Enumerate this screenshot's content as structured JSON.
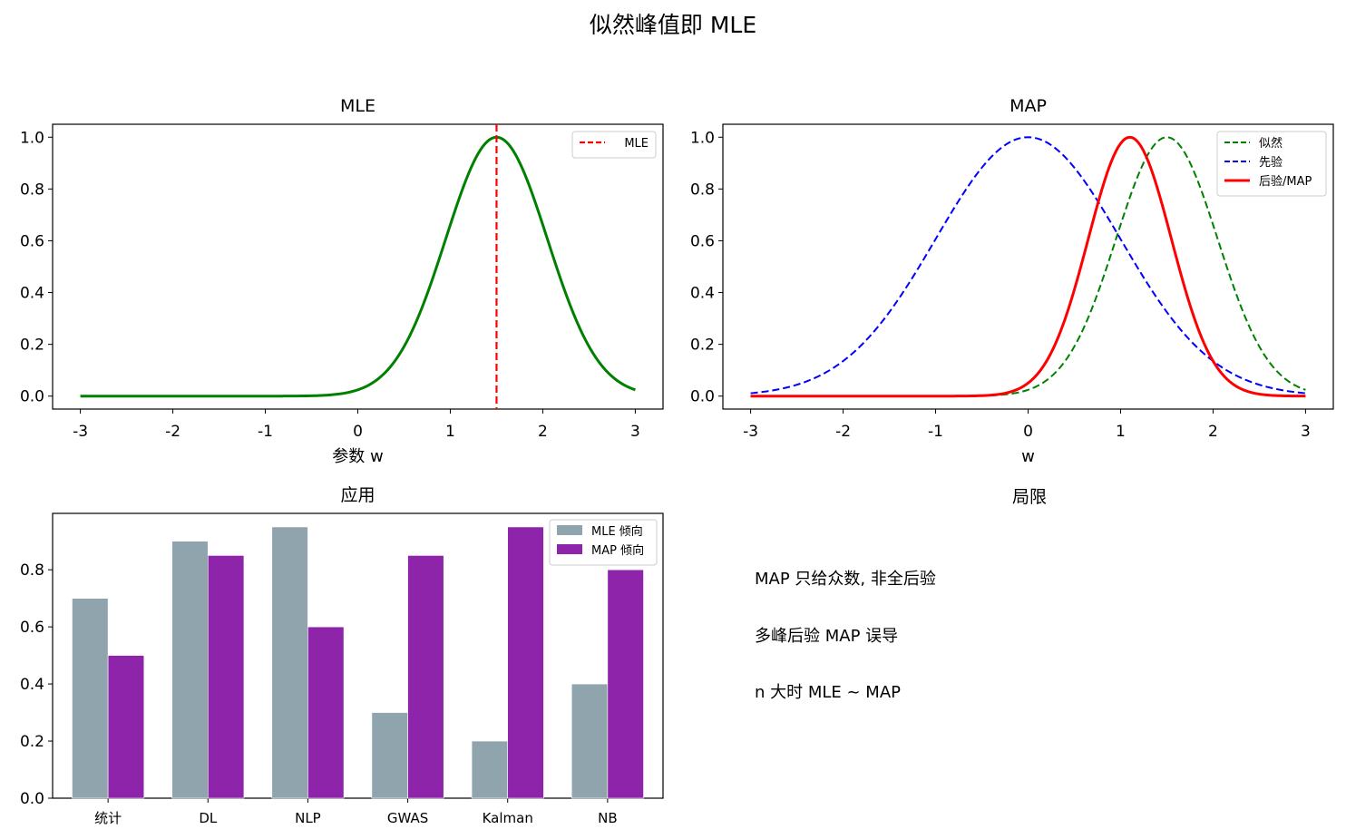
{
  "figure": {
    "suptitle": "似然峰值即 MLE"
  },
  "chart_data": [
    {
      "type": "line",
      "title": "MLE",
      "xlabel": "参数 w",
      "ylabel": "",
      "xlim": [
        -3.3,
        3.3
      ],
      "ylim": [
        -0.05,
        1.05
      ],
      "xticks": [
        -3,
        -2,
        -1,
        0,
        1,
        2,
        3
      ],
      "yticks": [
        0.0,
        0.2,
        0.4,
        0.6,
        0.8,
        1.0
      ],
      "series": [
        {
          "label": "",
          "kind": "gaussian",
          "mean": 1.5,
          "sd": 0.55,
          "x_range": [
            -3,
            3
          ],
          "color": "#008000",
          "style": "solid",
          "width": 3
        },
        {
          "name": "MLE",
          "kind": "vline",
          "x": 1.5,
          "color": "#ff0000",
          "style": "dashed",
          "width": 2.2
        }
      ],
      "legend": "top-right"
    },
    {
      "type": "line",
      "title": "MAP",
      "xlabel": "w",
      "ylabel": "",
      "xlim": [
        -3.3,
        3.3
      ],
      "ylim": [
        -0.05,
        1.05
      ],
      "xticks": [
        -3,
        -2,
        -1,
        0,
        1,
        2,
        3
      ],
      "yticks": [
        0.0,
        0.2,
        0.4,
        0.6,
        0.8,
        1.0
      ],
      "series": [
        {
          "name": "似然",
          "kind": "gaussian",
          "mean": 1.5,
          "sd": 0.55,
          "x_range": [
            -3,
            3
          ],
          "color": "#008000",
          "style": "dashed",
          "width": 2
        },
        {
          "name": "先验",
          "kind": "gaussian",
          "mean": 0.0,
          "sd": 1.0,
          "x_range": [
            -3,
            3
          ],
          "color": "#0000ff",
          "style": "dashed",
          "width": 2
        },
        {
          "name": "后验/MAP",
          "kind": "gaussian",
          "mean": 1.1,
          "sd": 0.45,
          "x_range": [
            -3,
            3
          ],
          "color": "#ff0000",
          "style": "solid",
          "width": 3
        }
      ],
      "legend": "top-right"
    },
    {
      "type": "bar",
      "title": "应用",
      "xlabel": "",
      "ylabel": "",
      "categories": [
        "统计",
        "DL",
        "NLP",
        "GWAS",
        "Kalman",
        "NB"
      ],
      "ylim": [
        0,
        0.9975
      ],
      "yticks": [
        0.0,
        0.2,
        0.4,
        0.6,
        0.8
      ],
      "series": [
        {
          "name": "MLE 倾向",
          "values": [
            0.7,
            0.9,
            0.95,
            0.3,
            0.2,
            0.4
          ],
          "color": "#90a4ae"
        },
        {
          "name": "MAP 倾向",
          "values": [
            0.5,
            0.85,
            0.6,
            0.85,
            0.95,
            0.8
          ],
          "color": "#8e24aa"
        }
      ],
      "legend": "top-right"
    }
  ],
  "limits_panel": {
    "title": "局限",
    "lines": [
      "MAP 只给众数, 非全后验",
      "多峰后验 MAP 误导",
      "n 大时 MLE ~ MAP"
    ]
  }
}
